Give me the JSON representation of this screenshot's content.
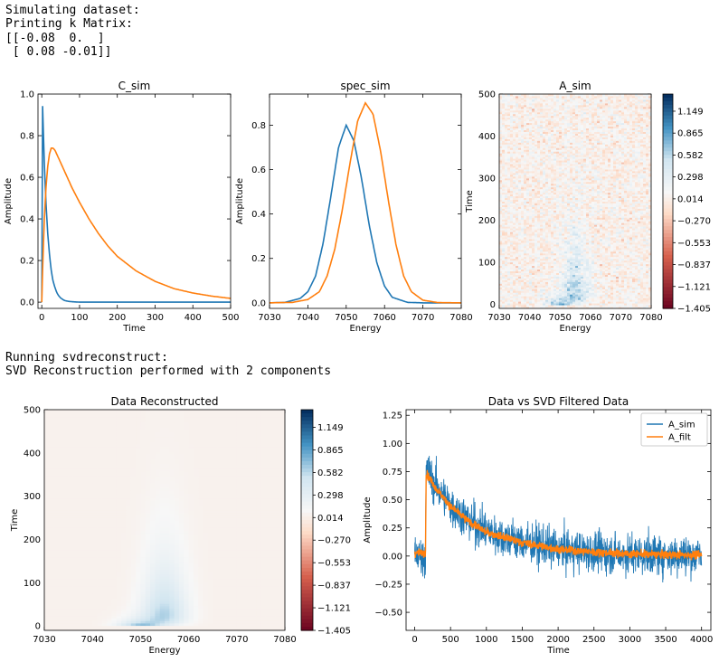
{
  "console": {
    "lines_top": [
      "Simulating dataset:",
      "Printing k Matrix:",
      "[[-0.08  0.  ]",
      " [ 0.08 -0.01]]"
    ],
    "lines_mid": [
      "Running svdreconstruct:",
      "SVD Reconstruction performed with 2 components"
    ]
  },
  "colors": {
    "blue": "#1f77b4",
    "orange": "#ff7f0e"
  },
  "chart_data": [
    {
      "type": "line",
      "title": "C_sim",
      "xlabel": "Time",
      "ylabel": "Amplitude",
      "xlim": [
        -10,
        500
      ],
      "ylim": [
        -0.03,
        1.0
      ],
      "xticks": [
        0,
        100,
        200,
        300,
        400,
        500
      ],
      "yticks": [
        0.0,
        0.2,
        0.4,
        0.6,
        0.8,
        1.0
      ],
      "series": [
        {
          "color": "#1f77b4",
          "x": [
            0,
            2,
            4,
            6,
            8,
            10,
            12,
            15,
            18,
            22,
            26,
            30,
            35,
            40,
            45,
            50,
            60,
            70,
            80,
            100,
            150,
            200,
            300,
            400,
            500
          ],
          "y": [
            0.0,
            0.96,
            0.83,
            0.71,
            0.61,
            0.52,
            0.45,
            0.35,
            0.28,
            0.2,
            0.14,
            0.1,
            0.07,
            0.045,
            0.03,
            0.02,
            0.008,
            0.004,
            0.002,
            0.0,
            0.0,
            0.0,
            0.0,
            0.0,
            0.0
          ]
        },
        {
          "color": "#ff7f0e",
          "x": [
            0,
            3,
            6,
            10,
            15,
            20,
            25,
            30,
            35,
            40,
            50,
            60,
            80,
            100,
            125,
            150,
            175,
            200,
            250,
            300,
            350,
            400,
            450,
            500
          ],
          "y": [
            0.0,
            0.2,
            0.36,
            0.52,
            0.64,
            0.71,
            0.74,
            0.74,
            0.73,
            0.71,
            0.67,
            0.63,
            0.55,
            0.48,
            0.4,
            0.33,
            0.27,
            0.22,
            0.15,
            0.1,
            0.065,
            0.044,
            0.029,
            0.018
          ]
        }
      ]
    },
    {
      "type": "line",
      "title": "spec_sim",
      "xlabel": "Energy",
      "ylabel": "Amplitude",
      "xlim": [
        7030,
        7080
      ],
      "ylim": [
        -0.025,
        0.94
      ],
      "xticks": [
        7030,
        7040,
        7050,
        7060,
        7070,
        7080
      ],
      "yticks": [
        0.0,
        0.2,
        0.4,
        0.6,
        0.8
      ],
      "series": [
        {
          "color": "#1f77b4",
          "x": [
            7030,
            7034,
            7038,
            7040,
            7042,
            7044,
            7046,
            7048,
            7050,
            7052,
            7054,
            7056,
            7058,
            7060,
            7062,
            7066,
            7070,
            7074,
            7080
          ],
          "y": [
            0.0,
            0.002,
            0.02,
            0.05,
            0.12,
            0.27,
            0.48,
            0.7,
            0.8,
            0.73,
            0.56,
            0.35,
            0.18,
            0.075,
            0.025,
            0.002,
            0.0,
            0.0,
            0.0
          ]
        },
        {
          "color": "#ff7f0e",
          "x": [
            7030,
            7036,
            7040,
            7043,
            7045,
            7047,
            7049,
            7051,
            7053,
            7055,
            7057,
            7059,
            7061,
            7063,
            7065,
            7067,
            7070,
            7074,
            7080
          ],
          "y": [
            0.0,
            0.002,
            0.015,
            0.05,
            0.12,
            0.24,
            0.42,
            0.63,
            0.82,
            0.9,
            0.85,
            0.68,
            0.46,
            0.26,
            0.12,
            0.05,
            0.012,
            0.001,
            0.0
          ]
        }
      ]
    },
    {
      "type": "heatmap",
      "title": "A_sim",
      "xlabel": "Energy",
      "ylabel": "Time",
      "xlim": [
        7030,
        7080
      ],
      "ylim": [
        -10,
        500
      ],
      "xticks": [
        7030,
        7040,
        7050,
        7060,
        7070,
        7080
      ],
      "yticks": [
        0,
        100,
        200,
        300,
        400,
        500
      ],
      "colorbar": {
        "ticks": [
          "1.149",
          "0.865",
          "0.582",
          "0.298",
          "0.014",
          "−0.270",
          "−0.553",
          "−0.837",
          "−1.121",
          "−1.405"
        ]
      }
    },
    {
      "type": "heatmap",
      "title": "Data Reconstructed",
      "xlabel": "Energy",
      "ylabel": "Time",
      "xlim": [
        7030,
        7080
      ],
      "ylim": [
        -10,
        500
      ],
      "xticks": [
        7030,
        7040,
        7050,
        7060,
        7070,
        7080
      ],
      "yticks": [
        0,
        100,
        200,
        300,
        400,
        500
      ],
      "colorbar": {
        "ticks": [
          "1.149",
          "0.865",
          "0.582",
          "0.298",
          "0.014",
          "−0.270",
          "−0.553",
          "−0.837",
          "−1.121",
          "−1.405"
        ]
      }
    },
    {
      "type": "line",
      "title": "Data vs SVD Filtered Data",
      "xlabel": "Time",
      "ylabel": "Amplitude",
      "xlim": [
        -120,
        4130
      ],
      "ylim": [
        -0.66,
        1.3
      ],
      "xticks": [
        0,
        500,
        1000,
        1500,
        2000,
        2500,
        3000,
        3500,
        4000
      ],
      "yticks": [
        -0.5,
        -0.25,
        0.0,
        0.25,
        0.5,
        0.75,
        1.0,
        1.25
      ],
      "legend": {
        "position": "top-right",
        "entries": [
          "A_sim",
          "A_filt"
        ]
      },
      "series": [
        {
          "name": "A_sim",
          "color": "#1f77b4",
          "noise_amplitude": 0.3,
          "x": [
            0,
            150,
            160,
            200,
            300,
            500,
            750,
            1000,
            1500,
            2000,
            2500,
            3000,
            3500,
            4000
          ],
          "y": [
            0.0,
            0.0,
            0.75,
            0.72,
            0.62,
            0.45,
            0.32,
            0.22,
            0.12,
            0.06,
            0.03,
            0.015,
            0.01,
            0.005
          ]
        },
        {
          "name": "A_filt",
          "color": "#ff7f0e",
          "noise_amplitude": 0.06,
          "x": [
            0,
            150,
            160,
            200,
            300,
            500,
            750,
            1000,
            1500,
            2000,
            2500,
            3000,
            3500,
            4000
          ],
          "y": [
            0.03,
            0.03,
            0.73,
            0.7,
            0.6,
            0.44,
            0.31,
            0.21,
            0.12,
            0.06,
            0.035,
            0.02,
            0.012,
            0.01
          ]
        }
      ]
    }
  ]
}
